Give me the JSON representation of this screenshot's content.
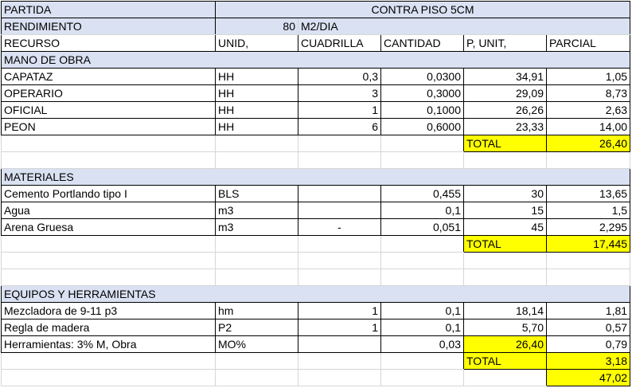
{
  "header": {
    "partida_label": "PARTIDA",
    "partida_value": "CONTRA PISO 5CM",
    "rendimiento_label": "RENDIMIENTO",
    "rendimiento_value": "80",
    "rendimiento_unit": "M2/DIA"
  },
  "columns": [
    "RECURSO",
    "UNID,",
    "CUADRILLA",
    "CANTIDAD",
    "P, UNIT,",
    "PARCIAL"
  ],
  "mano_de_obra": {
    "title": "MANO DE OBRA",
    "rows": [
      {
        "recurso": "CAPATAZ",
        "unid": "HH",
        "cuadrilla": "0,3",
        "cantidad": "0,0300",
        "punit": "34,91",
        "parcial": "1,05"
      },
      {
        "recurso": "OPERARIO",
        "unid": "HH",
        "cuadrilla": "3",
        "cantidad": "0,3000",
        "punit": "29,09",
        "parcial": "8,73"
      },
      {
        "recurso": "OFICIAL",
        "unid": "HH",
        "cuadrilla": "1",
        "cantidad": "0,1000",
        "punit": "26,26",
        "parcial": "2,63"
      },
      {
        "recurso": "PEON",
        "unid": "HH",
        "cuadrilla": "6",
        "cantidad": "0,6000",
        "punit": "23,33",
        "parcial": "14,00"
      }
    ],
    "total_label": "TOTAL",
    "total_value": "26,40"
  },
  "materiales": {
    "title": "MATERIALES",
    "rows": [
      {
        "recurso": "Cemento Portlando tipo I",
        "unid": "BLS",
        "cuadrilla": "",
        "cantidad": "0,455",
        "punit": "30",
        "parcial": "13,65"
      },
      {
        "recurso": "Agua",
        "unid": "m3",
        "cuadrilla": "",
        "cantidad": "0,1",
        "punit": "15",
        "parcial": "1,5"
      },
      {
        "recurso": "Arena Gruesa",
        "unid": "m3",
        "cuadrilla": "-",
        "cantidad": "0,051",
        "punit": "45",
        "parcial": "2,295"
      }
    ],
    "total_label": "TOTAL",
    "total_value": "17,445"
  },
  "equipos": {
    "title": "EQUIPOS Y HERRAMIENTAS",
    "rows": [
      {
        "recurso": "Mezcladora de 9-11 p3",
        "unid": "hm",
        "cuadrilla": "1",
        "cantidad": "0,1",
        "punit": "18,14",
        "parcial": "1,81"
      },
      {
        "recurso": "Regla de madera",
        "unid": "P2",
        "cuadrilla": "1",
        "cantidad": "0,1",
        "punit": "5,70",
        "parcial": "0,57"
      },
      {
        "recurso": "Herramientas: 3% M, Obra",
        "unid": "MO%",
        "cuadrilla": "",
        "cantidad": "0,03",
        "punit": "26,40",
        "parcial": "0,79"
      }
    ],
    "total_label": "TOTAL",
    "total_value": "3,18"
  },
  "grand_total": "47,02",
  "colors": {
    "header_blue": "#d9e1f2",
    "highlight_yellow": "#ffff00"
  }
}
